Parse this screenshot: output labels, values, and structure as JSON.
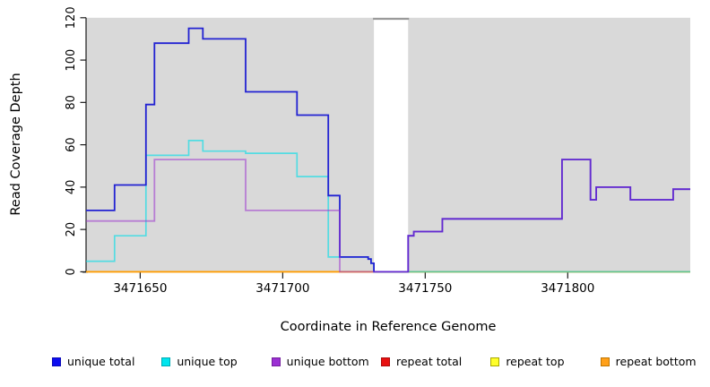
{
  "chart_data": {
    "type": "line",
    "step": true,
    "xlabel": "Coordinate in Reference Genome",
    "ylabel": "Read Coverage Depth",
    "xlim": [
      3471631,
      3471843
    ],
    "ylim": [
      0,
      120
    ],
    "x_ticks": [
      3471650,
      3471700,
      3471750,
      3471800
    ],
    "y_ticks": [
      0,
      20,
      40,
      60,
      80,
      100,
      120
    ],
    "grid": false,
    "legend_position": "bottom",
    "plot_bg_color": "#d9d9d9",
    "masked_region": {
      "x_start": 3471732,
      "x_end": 3471744,
      "fill": "#ffffff",
      "cap_color": "#9a9a9a"
    },
    "draw_order": [
      "repeat total",
      "repeat top",
      "repeat bottom",
      "unique top",
      "unique total",
      "unique bottom"
    ],
    "series": [
      {
        "name": "unique total",
        "stroke": "#2222d2",
        "opacity": 1,
        "width": 1.8,
        "points": [
          [
            3471631,
            29
          ],
          [
            3471641,
            41
          ],
          [
            3471652,
            79
          ],
          [
            3471655,
            108
          ],
          [
            3471667,
            115
          ],
          [
            3471672,
            110
          ],
          [
            3471687,
            85
          ],
          [
            3471705,
            74
          ],
          [
            3471716,
            36
          ],
          [
            3471720,
            7
          ],
          [
            3471730,
            6
          ],
          [
            3471731,
            4
          ],
          [
            3471732,
            0
          ],
          [
            3471744,
            17
          ],
          [
            3471746,
            19
          ],
          [
            3471756,
            25
          ],
          [
            3471798,
            53
          ],
          [
            3471808,
            34
          ],
          [
            3471810,
            40
          ],
          [
            3471822,
            34
          ],
          [
            3471837,
            39
          ],
          [
            3471843,
            39
          ]
        ]
      },
      {
        "name": "unique top",
        "stroke": "#00dde6",
        "opacity": 0.62,
        "width": 1.7,
        "points": [
          [
            3471631,
            5
          ],
          [
            3471641,
            17
          ],
          [
            3471652,
            55
          ],
          [
            3471667,
            62
          ],
          [
            3471672,
            57
          ],
          [
            3471687,
            56
          ],
          [
            3471705,
            45
          ],
          [
            3471716,
            7
          ],
          [
            3471730,
            6
          ],
          [
            3471731,
            4
          ],
          [
            3471732,
            0
          ],
          [
            3471843,
            0
          ]
        ]
      },
      {
        "name": "unique bottom",
        "stroke": "#9a32cd",
        "opacity": 0.55,
        "width": 1.8,
        "points": [
          [
            3471631,
            24
          ],
          [
            3471655,
            53
          ],
          [
            3471687,
            29
          ],
          [
            3471720,
            0
          ],
          [
            3471744,
            17
          ],
          [
            3471746,
            19
          ],
          [
            3471756,
            25
          ],
          [
            3471798,
            53
          ],
          [
            3471808,
            34
          ],
          [
            3471810,
            40
          ],
          [
            3471822,
            34
          ],
          [
            3471837,
            39
          ],
          [
            3471843,
            39
          ]
        ]
      },
      {
        "name": "repeat total",
        "stroke": "#d22222",
        "opacity": 1,
        "width": 1.5,
        "points": [
          [
            3471631,
            0
          ],
          [
            3471843,
            0
          ]
        ]
      },
      {
        "name": "repeat top",
        "stroke": "#ffee00",
        "opacity": 1,
        "width": 1.5,
        "points": [
          [
            3471631,
            0
          ],
          [
            3471843,
            0
          ]
        ]
      },
      {
        "name": "repeat bottom",
        "stroke": "#ff9d00",
        "opacity": 1,
        "width": 1.8,
        "points": [
          [
            3471631,
            0
          ],
          [
            3471843,
            0
          ]
        ]
      }
    ]
  },
  "legend": {
    "items": [
      {
        "label": "unique total",
        "fill": "#0d0df0",
        "border": "#0a0ab8"
      },
      {
        "label": "unique top",
        "fill": "#00e5ee",
        "border": "#00aab4"
      },
      {
        "label": "unique bottom",
        "fill": "#9b30d3",
        "border": "#741f9e"
      },
      {
        "label": "repeat total",
        "fill": "#e81010",
        "border": "#ab0b0b"
      },
      {
        "label": "repeat top",
        "fill": "#ffff2a",
        "border": "#a8a800"
      },
      {
        "label": "repeat bottom",
        "fill": "#ffa019",
        "border": "#bf7500"
      }
    ]
  }
}
